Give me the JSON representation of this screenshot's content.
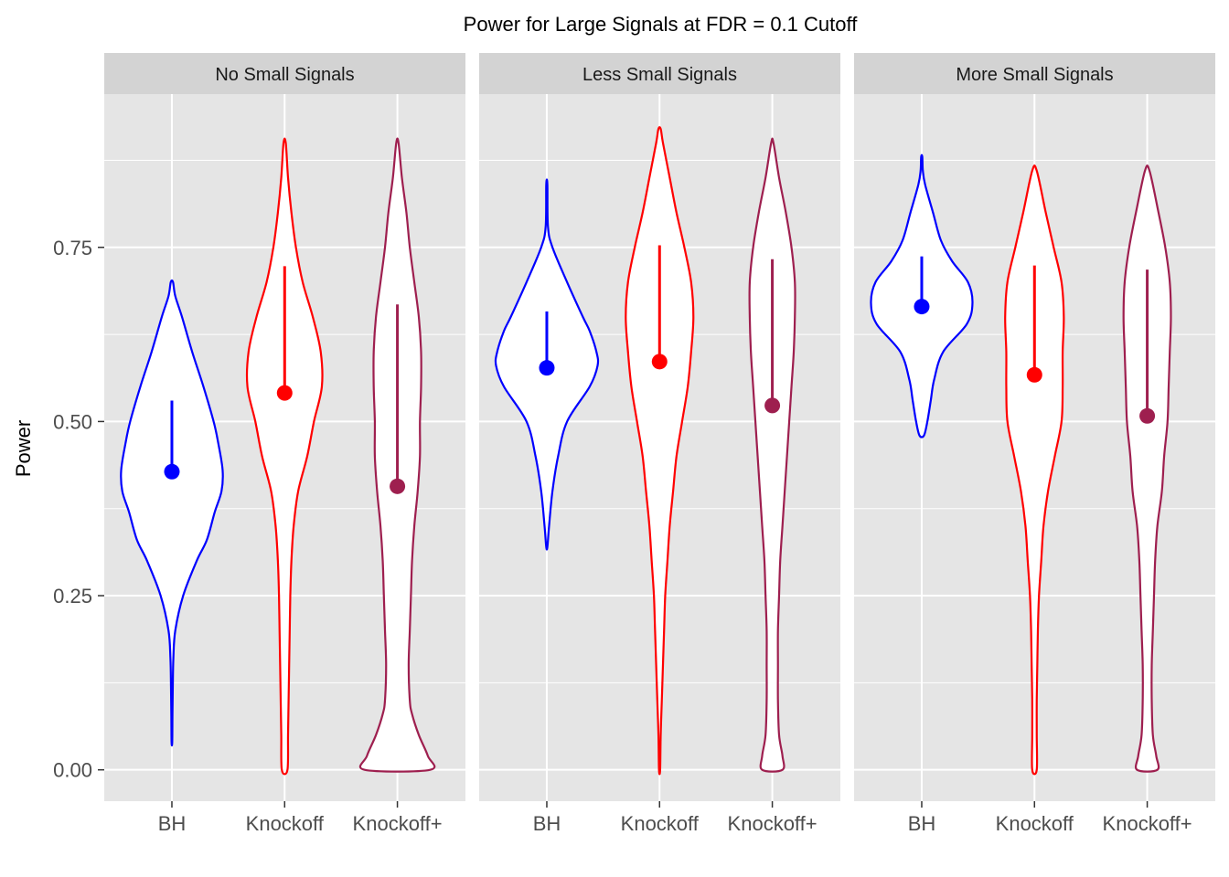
{
  "chart_data": {
    "type": "violin",
    "title": "Power for Large Signals at FDR = 0.1 Cutoff",
    "ylabel": "Power",
    "xlabel": "",
    "ylim": [
      -0.045,
      0.97
    ],
    "y_ticks": [
      0.0,
      0.25,
      0.5,
      0.75
    ],
    "y_tick_labels": [
      "0.00",
      "0.25",
      "0.50",
      "0.75"
    ],
    "y_minor_ticks": [
      0.125,
      0.375,
      0.625,
      0.875
    ],
    "categories": [
      "BH",
      "Knockoff",
      "Knockoff+"
    ],
    "colors": {
      "BH": "#0000ff",
      "Knockoff": "#ff0000",
      "Knockoff+": "#9e1f4f"
    },
    "panel_background": "#e5e5e5",
    "strip_background": "#d3d3d3",
    "grid": true,
    "panels": [
      {
        "name": "No Small Signals",
        "violins": [
          {
            "category": "BH",
            "mean": 0.428,
            "upper": 0.53,
            "profile": [
              [
                0.04,
                0.003
              ],
              [
                0.08,
                0.005
              ],
              [
                0.12,
                0.008
              ],
              [
                0.16,
                0.013
              ],
              [
                0.2,
                0.03
              ],
              [
                0.25,
                0.1
              ],
              [
                0.3,
                0.22
              ],
              [
                0.33,
                0.31
              ],
              [
                0.37,
                0.38
              ],
              [
                0.4,
                0.44
              ],
              [
                0.43,
                0.45
              ],
              [
                0.47,
                0.41
              ],
              [
                0.5,
                0.37
              ],
              [
                0.55,
                0.28
              ],
              [
                0.6,
                0.18
              ],
              [
                0.65,
                0.09
              ],
              [
                0.68,
                0.03
              ],
              [
                0.7,
                0.01
              ]
            ]
          },
          {
            "category": "Knockoff",
            "mean": 0.541,
            "upper": 0.723,
            "profile": [
              [
                0.0,
                0.025
              ],
              [
                0.05,
                0.03
              ],
              [
                0.1,
                0.035
              ],
              [
                0.15,
                0.04
              ],
              [
                0.2,
                0.045
              ],
              [
                0.25,
                0.05
              ],
              [
                0.3,
                0.06
              ],
              [
                0.35,
                0.08
              ],
              [
                0.4,
                0.12
              ],
              [
                0.45,
                0.2
              ],
              [
                0.5,
                0.26
              ],
              [
                0.55,
                0.33
              ],
              [
                0.6,
                0.32
              ],
              [
                0.65,
                0.25
              ],
              [
                0.7,
                0.16
              ],
              [
                0.75,
                0.1
              ],
              [
                0.8,
                0.06
              ],
              [
                0.85,
                0.03
              ],
              [
                0.9,
                0.01
              ]
            ]
          },
          {
            "category": "Knockoff+",
            "mean": 0.407,
            "upper": 0.668,
            "profile": [
              [
                0.0,
                0.29
              ],
              [
                0.02,
                0.27
              ],
              [
                0.05,
                0.19
              ],
              [
                0.08,
                0.13
              ],
              [
                0.1,
                0.11
              ],
              [
                0.15,
                0.1
              ],
              [
                0.2,
                0.11
              ],
              [
                0.25,
                0.12
              ],
              [
                0.3,
                0.13
              ],
              [
                0.35,
                0.15
              ],
              [
                0.4,
                0.18
              ],
              [
                0.45,
                0.2
              ],
              [
                0.5,
                0.2
              ],
              [
                0.55,
                0.21
              ],
              [
                0.6,
                0.21
              ],
              [
                0.65,
                0.19
              ],
              [
                0.7,
                0.15
              ],
              [
                0.75,
                0.11
              ],
              [
                0.8,
                0.08
              ],
              [
                0.85,
                0.04
              ],
              [
                0.9,
                0.01
              ]
            ]
          }
        ]
      },
      {
        "name": "Less Small Signals",
        "violins": [
          {
            "category": "BH",
            "mean": 0.577,
            "upper": 0.658,
            "profile": [
              [
                0.32,
                0.005
              ],
              [
                0.35,
                0.02
              ],
              [
                0.4,
                0.05
              ],
              [
                0.45,
                0.1
              ],
              [
                0.5,
                0.18
              ],
              [
                0.55,
                0.38
              ],
              [
                0.58,
                0.45
              ],
              [
                0.6,
                0.44
              ],
              [
                0.63,
                0.38
              ],
              [
                0.65,
                0.32
              ],
              [
                0.7,
                0.18
              ],
              [
                0.75,
                0.05
              ],
              [
                0.78,
                0.01
              ],
              [
                0.84,
                0.005
              ]
            ]
          },
          {
            "category": "Knockoff",
            "mean": 0.586,
            "upper": 0.753,
            "profile": [
              [
                0.0,
                0.005
              ],
              [
                0.05,
                0.01
              ],
              [
                0.1,
                0.02
              ],
              [
                0.2,
                0.04
              ],
              [
                0.25,
                0.05
              ],
              [
                0.3,
                0.07
              ],
              [
                0.35,
                0.09
              ],
              [
                0.4,
                0.12
              ],
              [
                0.45,
                0.15
              ],
              [
                0.5,
                0.2
              ],
              [
                0.55,
                0.25
              ],
              [
                0.6,
                0.28
              ],
              [
                0.65,
                0.3
              ],
              [
                0.7,
                0.28
              ],
              [
                0.75,
                0.22
              ],
              [
                0.8,
                0.15
              ],
              [
                0.85,
                0.09
              ],
              [
                0.9,
                0.03
              ],
              [
                0.92,
                0.01
              ]
            ]
          },
          {
            "category": "Knockoff+",
            "mean": 0.523,
            "upper": 0.733,
            "profile": [
              [
                0.0,
                0.09
              ],
              [
                0.02,
                0.09
              ],
              [
                0.05,
                0.06
              ],
              [
                0.1,
                0.05
              ],
              [
                0.15,
                0.05
              ],
              [
                0.2,
                0.05
              ],
              [
                0.25,
                0.06
              ],
              [
                0.3,
                0.07
              ],
              [
                0.35,
                0.09
              ],
              [
                0.4,
                0.11
              ],
              [
                0.45,
                0.13
              ],
              [
                0.5,
                0.15
              ],
              [
                0.55,
                0.17
              ],
              [
                0.6,
                0.19
              ],
              [
                0.65,
                0.2
              ],
              [
                0.7,
                0.2
              ],
              [
                0.75,
                0.17
              ],
              [
                0.8,
                0.12
              ],
              [
                0.85,
                0.06
              ],
              [
                0.9,
                0.01
              ]
            ]
          }
        ]
      },
      {
        "name": "More Small Signals",
        "violins": [
          {
            "category": "BH",
            "mean": 0.665,
            "upper": 0.737,
            "profile": [
              [
                0.48,
                0.02
              ],
              [
                0.5,
                0.05
              ],
              [
                0.53,
                0.08
              ],
              [
                0.56,
                0.11
              ],
              [
                0.6,
                0.19
              ],
              [
                0.64,
                0.4
              ],
              [
                0.67,
                0.45
              ],
              [
                0.7,
                0.41
              ],
              [
                0.73,
                0.27
              ],
              [
                0.76,
                0.17
              ],
              [
                0.8,
                0.1
              ],
              [
                0.84,
                0.03
              ],
              [
                0.86,
                0.01
              ],
              [
                0.88,
                0.005
              ]
            ]
          },
          {
            "category": "Knockoff",
            "mean": 0.567,
            "upper": 0.724,
            "profile": [
              [
                0.0,
                0.02
              ],
              [
                0.05,
                0.02
              ],
              [
                0.1,
                0.02
              ],
              [
                0.15,
                0.025
              ],
              [
                0.2,
                0.03
              ],
              [
                0.25,
                0.04
              ],
              [
                0.3,
                0.06
              ],
              [
                0.35,
                0.08
              ],
              [
                0.4,
                0.12
              ],
              [
                0.45,
                0.18
              ],
              [
                0.5,
                0.24
              ],
              [
                0.55,
                0.25
              ],
              [
                0.6,
                0.25
              ],
              [
                0.65,
                0.26
              ],
              [
                0.7,
                0.24
              ],
              [
                0.75,
                0.17
              ],
              [
                0.8,
                0.1
              ],
              [
                0.86,
                0.02
              ]
            ]
          },
          {
            "category": "Knockoff+",
            "mean": 0.508,
            "upper": 0.718,
            "profile": [
              [
                0.0,
                0.09
              ],
              [
                0.02,
                0.08
              ],
              [
                0.05,
                0.05
              ],
              [
                0.1,
                0.04
              ],
              [
                0.15,
                0.04
              ],
              [
                0.2,
                0.05
              ],
              [
                0.25,
                0.06
              ],
              [
                0.3,
                0.07
              ],
              [
                0.35,
                0.09
              ],
              [
                0.4,
                0.13
              ],
              [
                0.45,
                0.15
              ],
              [
                0.5,
                0.18
              ],
              [
                0.55,
                0.19
              ],
              [
                0.6,
                0.2
              ],
              [
                0.65,
                0.21
              ],
              [
                0.7,
                0.2
              ],
              [
                0.75,
                0.16
              ],
              [
                0.8,
                0.1
              ],
              [
                0.86,
                0.02
              ]
            ]
          }
        ]
      }
    ]
  }
}
